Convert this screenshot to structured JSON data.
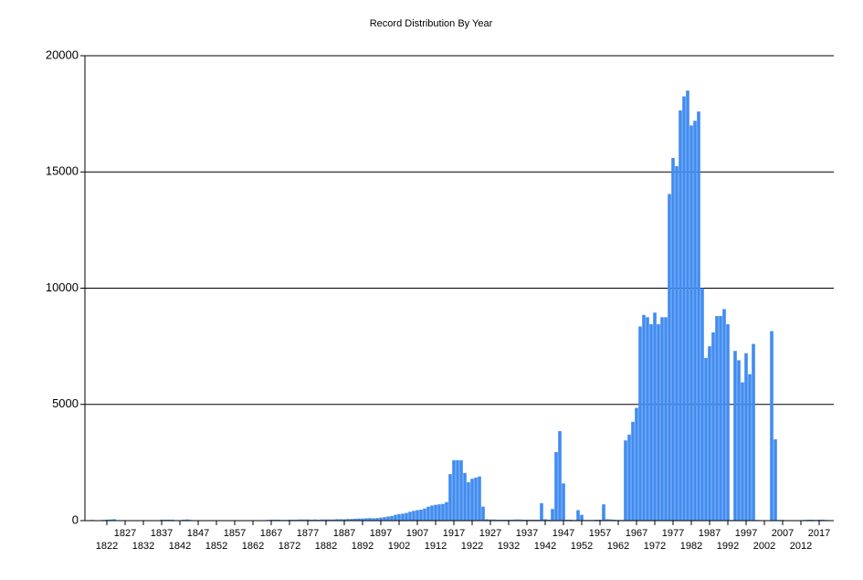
{
  "chart_data": {
    "type": "bar",
    "title": "Record Distribution By Year",
    "x": [
      1817,
      1818,
      1819,
      1820,
      1821,
      1822,
      1823,
      1824,
      1825,
      1826,
      1827,
      1828,
      1829,
      1830,
      1831,
      1832,
      1833,
      1834,
      1835,
      1836,
      1837,
      1838,
      1839,
      1840,
      1841,
      1842,
      1843,
      1844,
      1845,
      1846,
      1847,
      1848,
      1849,
      1850,
      1851,
      1852,
      1853,
      1854,
      1855,
      1856,
      1857,
      1858,
      1859,
      1860,
      1861,
      1862,
      1863,
      1864,
      1865,
      1866,
      1867,
      1868,
      1869,
      1870,
      1871,
      1872,
      1873,
      1874,
      1875,
      1876,
      1877,
      1878,
      1879,
      1880,
      1881,
      1882,
      1883,
      1884,
      1885,
      1886,
      1887,
      1888,
      1889,
      1890,
      1891,
      1892,
      1893,
      1894,
      1895,
      1896,
      1897,
      1898,
      1899,
      1900,
      1901,
      1902,
      1903,
      1904,
      1905,
      1906,
      1907,
      1908,
      1909,
      1910,
      1911,
      1912,
      1913,
      1914,
      1915,
      1916,
      1917,
      1918,
      1919,
      1920,
      1921,
      1922,
      1923,
      1924,
      1925,
      1926,
      1927,
      1928,
      1929,
      1930,
      1931,
      1932,
      1933,
      1934,
      1935,
      1936,
      1937,
      1938,
      1939,
      1940,
      1941,
      1942,
      1943,
      1944,
      1945,
      1946,
      1947,
      1948,
      1949,
      1950,
      1951,
      1952,
      1953,
      1954,
      1955,
      1956,
      1957,
      1958,
      1959,
      1960,
      1961,
      1962,
      1963,
      1964,
      1965,
      1966,
      1967,
      1968,
      1969,
      1970,
      1971,
      1972,
      1973,
      1974,
      1975,
      1976,
      1977,
      1978,
      1979,
      1980,
      1981,
      1982,
      1983,
      1984,
      1985,
      1986,
      1987,
      1988,
      1989,
      1990,
      1991,
      1992,
      1993,
      1994,
      1995,
      1996,
      1997,
      1998,
      1999,
      2000,
      2001,
      2002,
      2003,
      2004,
      2005,
      2006,
      2007,
      2008,
      2009,
      2010,
      2011,
      2012,
      2013,
      2014,
      2015,
      2016,
      2017,
      2018,
      2019,
      2020
    ],
    "values": [
      20,
      30,
      20,
      10,
      30,
      40,
      50,
      60,
      20,
      10,
      10,
      10,
      0,
      10,
      10,
      20,
      10,
      0,
      10,
      10,
      40,
      40,
      40,
      40,
      10,
      20,
      40,
      50,
      30,
      20,
      20,
      10,
      10,
      10,
      20,
      10,
      10,
      20,
      10,
      10,
      20,
      20,
      10,
      10,
      20,
      10,
      10,
      20,
      20,
      30,
      40,
      40,
      40,
      30,
      30,
      40,
      40,
      40,
      50,
      50,
      50,
      40,
      50,
      40,
      50,
      50,
      50,
      50,
      60,
      60,
      60,
      70,
      70,
      80,
      90,
      90,
      100,
      110,
      100,
      110,
      130,
      150,
      180,
      200,
      250,
      280,
      300,
      330,
      380,
      420,
      450,
      470,
      520,
      600,
      650,
      680,
      700,
      720,
      800,
      2000,
      2600,
      2600,
      2600,
      2050,
      1650,
      1800,
      1850,
      1900,
      600,
      60,
      50,
      50,
      40,
      40,
      40,
      40,
      40,
      50,
      50,
      40,
      40,
      40,
      40,
      40,
      750,
      60,
      40,
      500,
      2950,
      3850,
      1600,
      40,
      40,
      30,
      450,
      250,
      30,
      30,
      30,
      40,
      40,
      700,
      60,
      50,
      40,
      30,
      30,
      3450,
      3700,
      4250,
      4850,
      8350,
      8850,
      8750,
      8450,
      8950,
      8450,
      8750,
      8750,
      14050,
      15600,
      15250,
      17650,
      18250,
      18500,
      17000,
      17200,
      17600,
      10000,
      7000,
      7500,
      8100,
      8800,
      8800,
      9100,
      8450,
      30,
      7300,
      6900,
      5950,
      7200,
      6300,
      7600,
      30,
      20,
      20,
      20,
      8150,
      3500,
      30,
      30,
      20,
      20,
      20,
      20,
      20,
      30,
      40,
      40,
      30,
      40,
      40,
      30,
      20
    ],
    "color": "#418cf0",
    "xlim": [
      1816,
      2021
    ],
    "xticks": [
      1822,
      1827,
      1832,
      1837,
      1842,
      1847,
      1852,
      1857,
      1862,
      1867,
      1872,
      1877,
      1882,
      1887,
      1892,
      1897,
      1902,
      1907,
      1912,
      1917,
      1922,
      1927,
      1932,
      1937,
      1942,
      1947,
      1952,
      1957,
      1962,
      1967,
      1972,
      1977,
      1982,
      1987,
      1992,
      1997,
      2002,
      2007,
      2012,
      2017
    ],
    "ylim": [
      0,
      20000
    ],
    "yticks": [
      0,
      5000,
      10000,
      15000,
      20000
    ],
    "grid": true
  }
}
